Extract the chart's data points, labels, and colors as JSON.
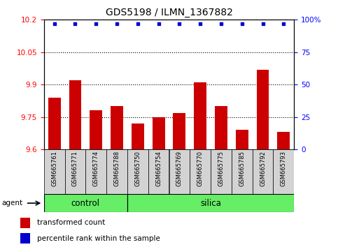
{
  "title": "GDS5198 / ILMN_1367882",
  "samples": [
    "GSM665761",
    "GSM665771",
    "GSM665774",
    "GSM665788",
    "GSM665750",
    "GSM665754",
    "GSM665769",
    "GSM665770",
    "GSM665775",
    "GSM665785",
    "GSM665792",
    "GSM665793"
  ],
  "bar_values": [
    9.84,
    9.92,
    9.78,
    9.8,
    9.72,
    9.75,
    9.77,
    9.91,
    9.8,
    9.69,
    9.97,
    9.68
  ],
  "percentile_values": [
    97,
    97,
    97,
    97,
    97,
    97,
    97,
    97,
    97,
    97,
    97,
    97
  ],
  "bar_color": "#cc0000",
  "dot_color": "#0000cc",
  "ylim_left": [
    9.6,
    10.2
  ],
  "ylim_right": [
    0,
    100
  ],
  "yticks_left": [
    9.6,
    9.75,
    9.9,
    10.05,
    10.2
  ],
  "yticks_right": [
    0,
    25,
    50,
    75,
    100
  ],
  "ytick_labels_left": [
    "9.6",
    "9.75",
    "9.9",
    "10.05",
    "10.2"
  ],
  "ytick_labels_right": [
    "0",
    "25",
    "50",
    "75",
    "100%"
  ],
  "n_control": 4,
  "n_silica": 8,
  "control_label": "control",
  "silica_label": "silica",
  "agent_label": "agent",
  "legend_bar_label": "transformed count",
  "legend_dot_label": "percentile rank within the sample",
  "bg_color": "#ffffff",
  "sample_box_color": "#d3d3d3",
  "group_box_color": "#66ee66"
}
